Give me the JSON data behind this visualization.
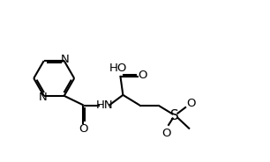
{
  "bg_color": "#ffffff",
  "line_color": "#000000",
  "lw": 1.5,
  "fs": 9.5,
  "figsize": [
    3.06,
    1.84
  ],
  "dpi": 100,
  "xlim": [
    0.0,
    10.0
  ],
  "ylim": [
    0.0,
    6.0
  ]
}
